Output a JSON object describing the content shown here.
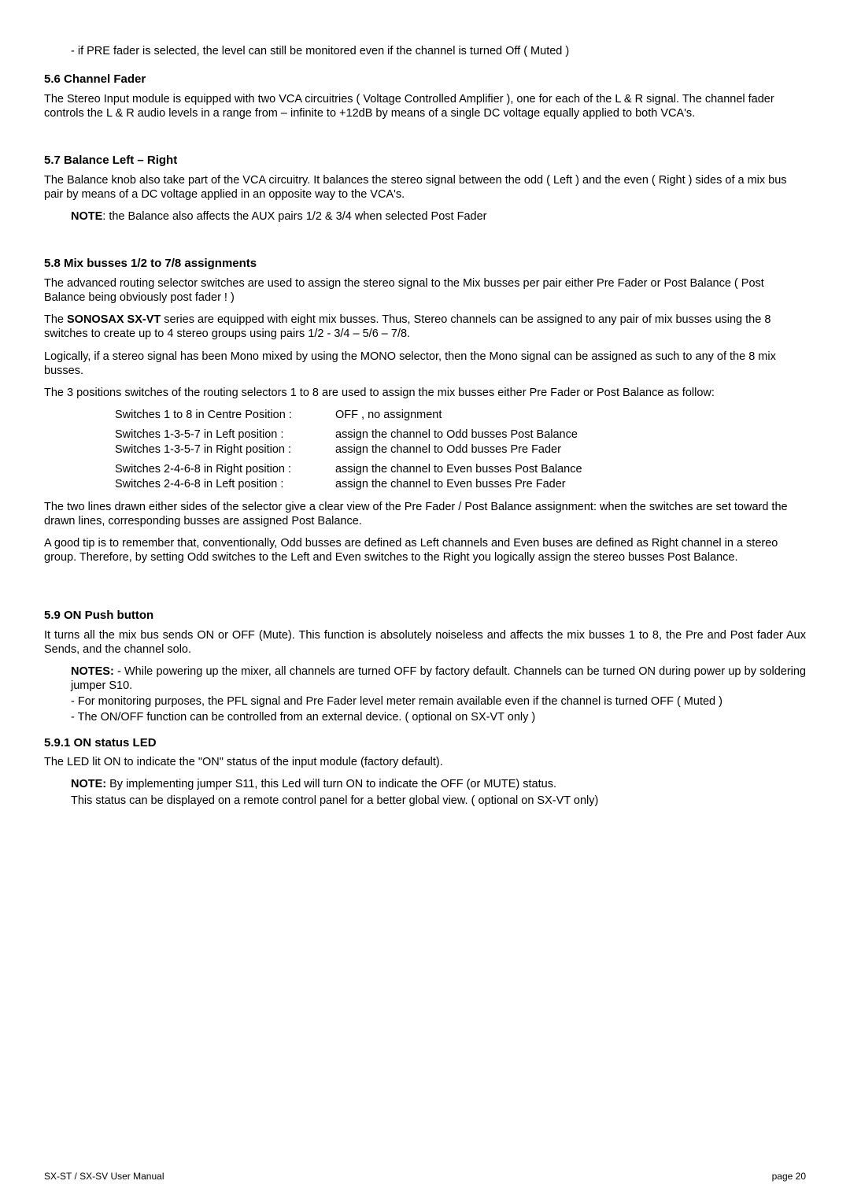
{
  "line_top": "- if PRE fader is selected, the level can still be monitored even if the channel is turned Off ( Muted )",
  "s56": {
    "heading": "5.6  Channel Fader",
    "p1": "The Stereo Input module is equipped with two VCA circuitries ( Voltage Controlled Amplifier ), one for each of the L & R signal. The channel fader controls the L & R audio levels in a range from – infinite to +12dB by means of a single DC voltage equally applied to both VCA's."
  },
  "s57": {
    "heading": "5.7  Balance Left – Right",
    "p1": "The Balance knob also take part of the VCA circuitry. It balances the stereo signal between the odd ( Left ) and the even ( Right ) sides of a mix bus pair by means of a DC voltage applied in an opposite way to the VCA's.",
    "note_label": "NOTE",
    "note_text": ": the Balance also affects the AUX pairs 1/2 & 3/4 when selected Post Fader"
  },
  "s58": {
    "heading": "5.8  Mix busses 1/2 to 7/8 assignments",
    "p1": "The advanced routing selector switches are used to assign the stereo signal to the Mix busses per pair either Pre Fader or Post Balance ( Post Balance being obviously post fader ! )",
    "p2a": "The ",
    "p2brand": "SONOSAX SX-VT",
    "p2b": " series are equipped with eight mix busses. Thus, Stereo channels can be assigned to any pair of mix busses using the 8 switches to create up to 4 stereo groups using pairs 1/2 - 3/4 – 5/6 – 7/8.",
    "p3": "Logically, if a stereo signal has been Mono mixed by using the MONO selector, then the Mono signal can be assigned as such to any of the 8 mix busses.",
    "p4": "The 3 positions switches of the routing selectors 1 to 8 are used to assign the mix busses either Pre Fader or Post Balance as follow:",
    "rows": [
      {
        "c1": "Switches 1 to 8 in Centre Position :",
        "c2": "OFF , no assignment"
      },
      {
        "c1": "Switches 1-3-5-7 in Left position :",
        "c2": "assign the channel to Odd busses Post Balance"
      },
      {
        "c1": "Switches 1-3-5-7 in Right position :",
        "c2": "assign the channel to Odd busses Pre Fader"
      },
      {
        "c1": "Switches 2-4-6-8 in Right position :",
        "c2": "assign the channel to Even busses Post Balance"
      },
      {
        "c1": "Switches 2-4-6-8 in Left position :",
        "c2": "assign the channel to Even busses Pre Fader"
      }
    ],
    "p5": "The two lines drawn either sides of the selector give a clear view of the Pre Fader / Post Balance assignment: when the switches are set toward the drawn lines, corresponding busses are assigned Post Balance.",
    "p6": "A good tip is to remember that, conventionally, Odd busses are defined as Left channels and Even buses are defined as Right channel in a stereo group. Therefore, by setting Odd switches to the Left and Even switches to the Right you logically assign the stereo busses Post Balance."
  },
  "s59": {
    "heading": "5.9  ON Push button",
    "p1": "It turns all the mix bus sends ON or OFF (Mute). This function is absolutely noiseless and affects the mix busses 1 to 8, the Pre and Post fader Aux Sends, and the channel solo.",
    "notes_label": "NOTES:",
    "notes1": " - While powering up the mixer, all channels are turned OFF by factory default. Channels can be turned ON during power up by soldering jumper S10.",
    "notes2": "- For monitoring purposes, the PFL signal and Pre Fader level meter remain available even if the channel is turned OFF ( Muted )",
    "notes3": "- The ON/OFF function can be controlled from an external device. ( optional on SX-VT only )"
  },
  "s591": {
    "heading": "5.9.1  ON status LED",
    "p1": "The LED lit ON to indicate the \"ON\" status of the input module (factory default).",
    "note_label": "NOTE:",
    "note1": " By implementing jumper S11, this Led will turn ON to indicate the OFF (or MUTE) status.",
    "note2": "This status can be displayed on a remote control panel for a better global view. ( optional on SX-VT only)"
  },
  "footer_left": "SX-ST / SX-SV User Manual",
  "footer_right": "page  20"
}
